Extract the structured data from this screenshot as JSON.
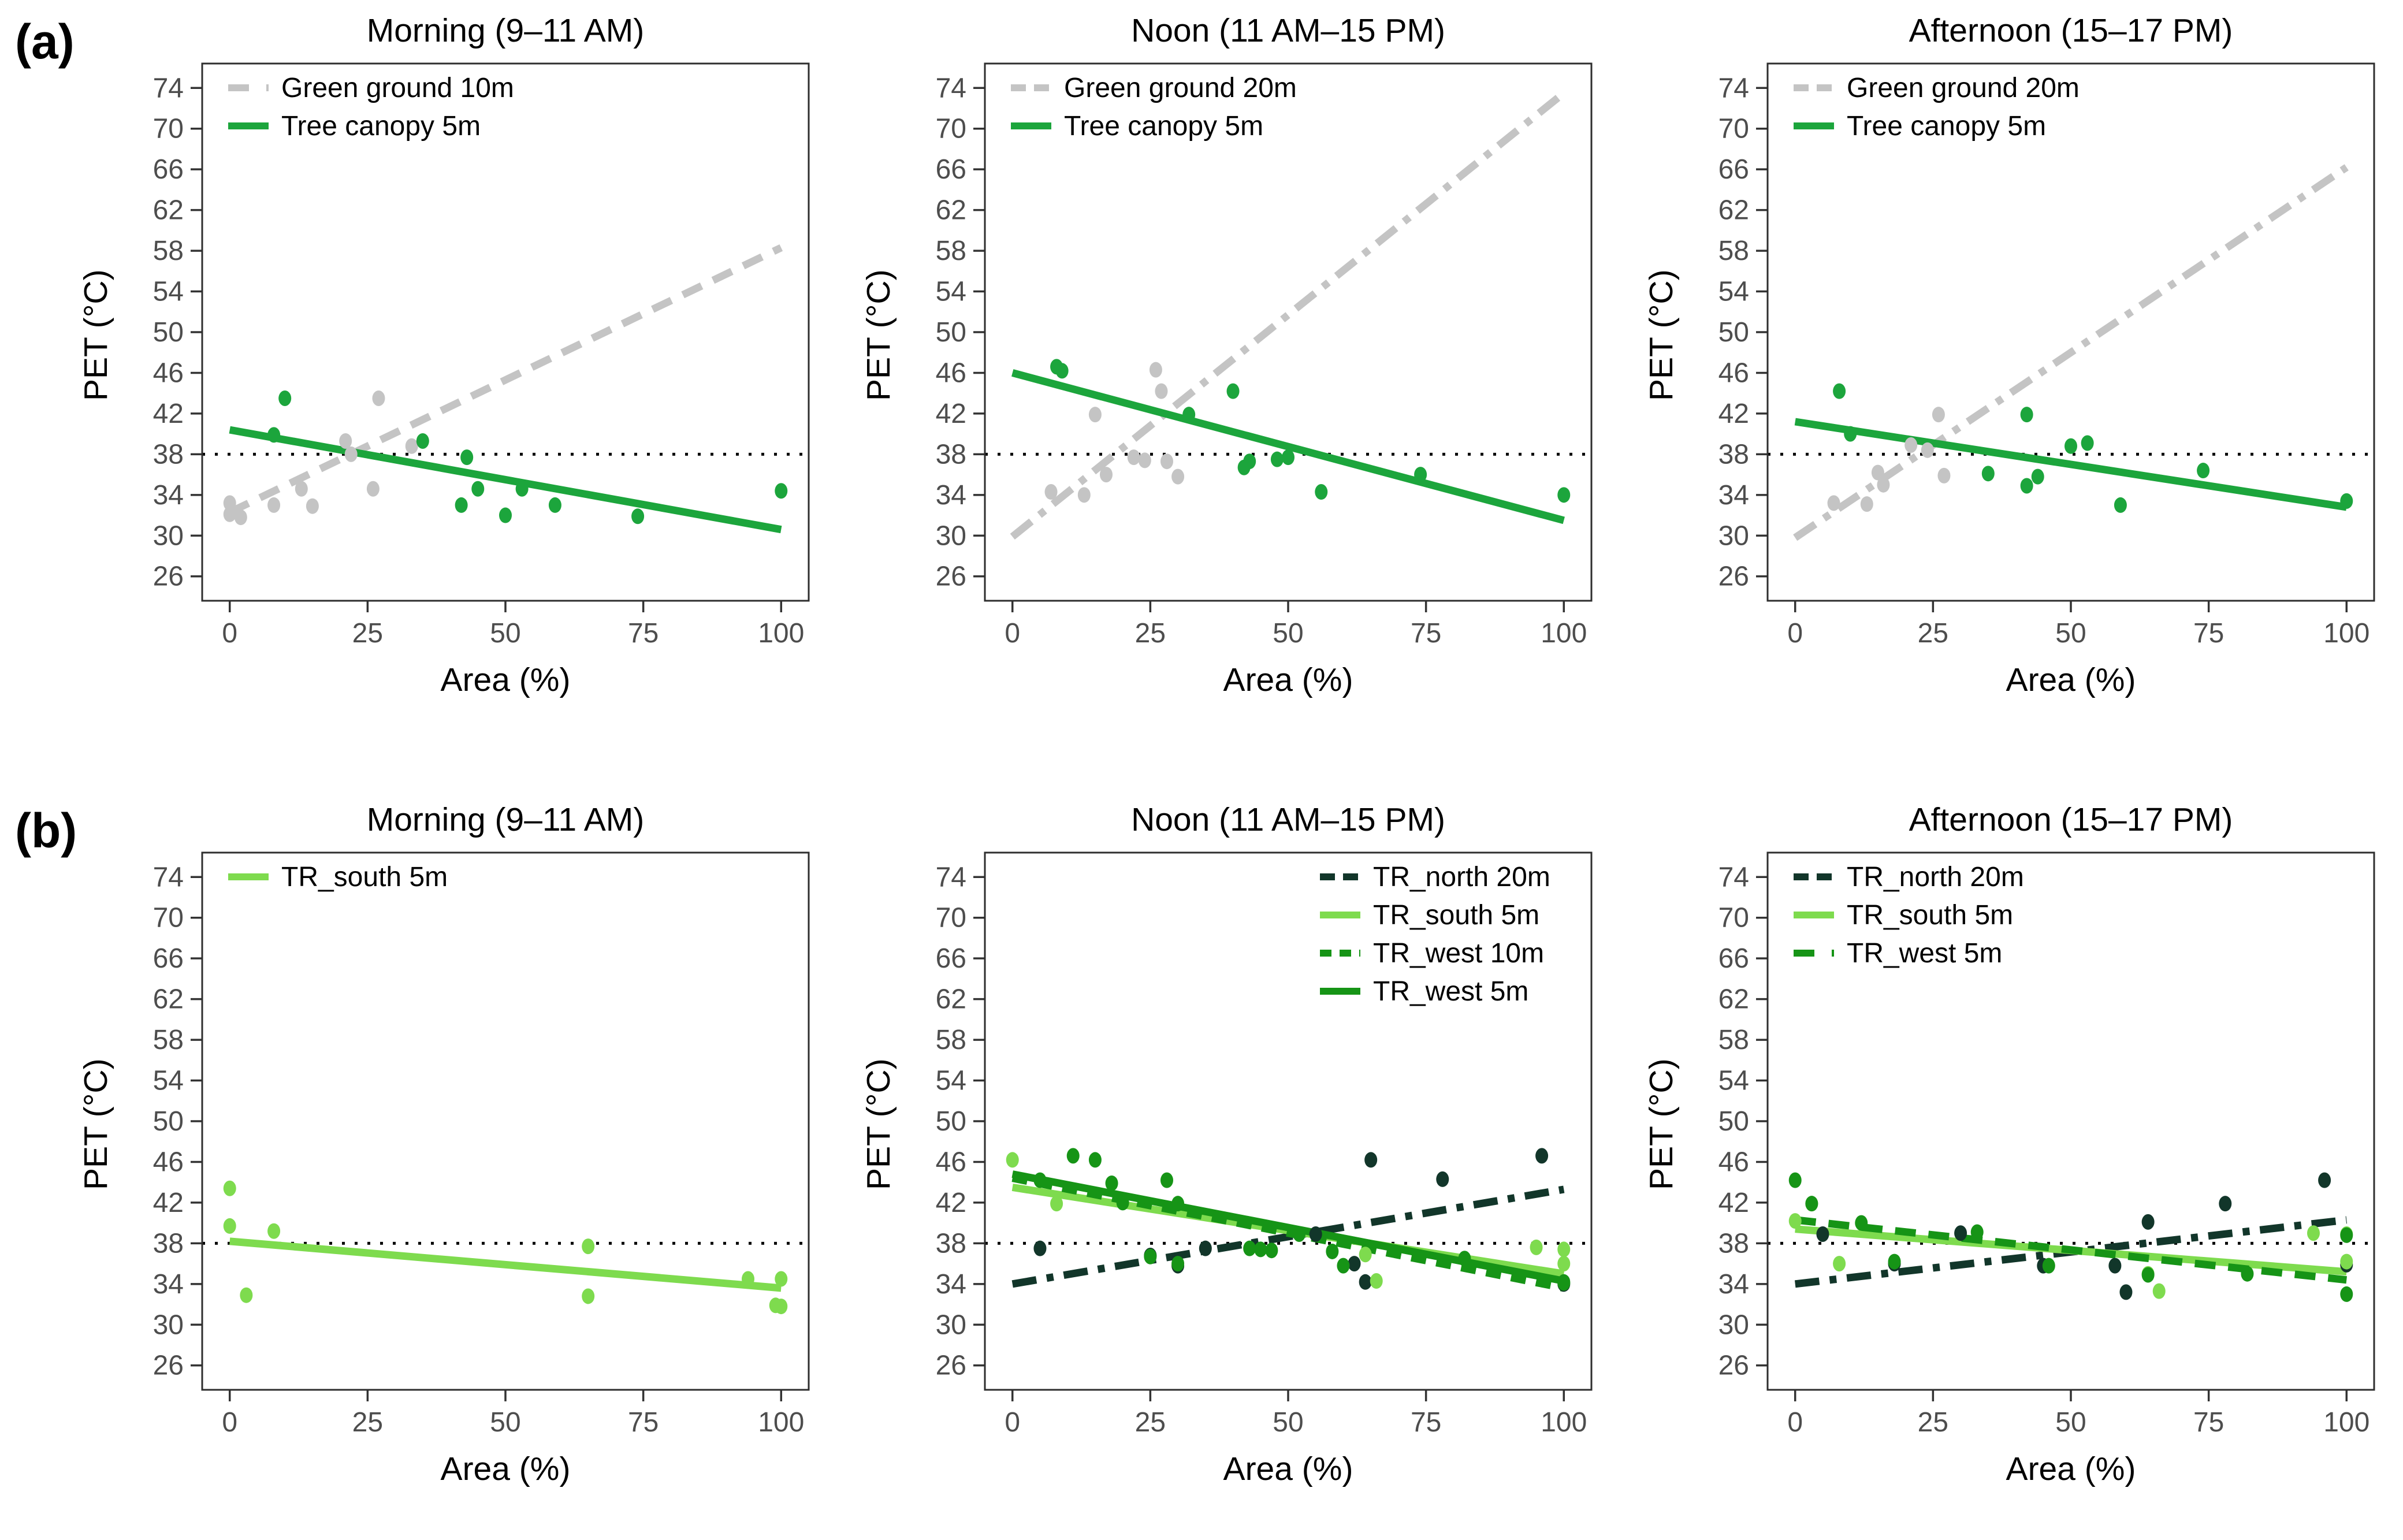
{
  "figure": {
    "panel_a_label": "(a)",
    "panel_b_label": "(b)",
    "x_axis_label": "Area (%)",
    "y_axis_label": "PET (°C)",
    "x_ticks": [
      0,
      25,
      50,
      75,
      100
    ],
    "y_ticks": [
      26,
      30,
      34,
      38,
      42,
      46,
      50,
      54,
      58,
      62,
      66,
      70,
      74
    ],
    "x_range": [
      -5,
      105
    ],
    "y_range": [
      23.6,
      76.4
    ],
    "reference_line_y": 38,
    "colors": {
      "green_ground_gray": "#C4C4C4",
      "tree_canopy_green": "#1CA53C",
      "tr_south_light_green": "#7EDB4E",
      "tr_west_medium_green": "#169416",
      "tr_north_dark_green": "#12362A",
      "reference_line": "#000000",
      "axis_text": "#4D4D4D",
      "panel_border": "#2E2E2E"
    }
  },
  "chart_data": [
    {
      "type": "scatter",
      "panel": "a",
      "title": "Morning (9–11 AM)",
      "xlabel": "Area (%)",
      "ylabel": "PET (°C)",
      "xlim": [
        -5,
        105
      ],
      "ylim": [
        23.6,
        76.4
      ],
      "legend_position": "top-left",
      "reference_line_y": 38,
      "series": [
        {
          "name": "Green ground 10m",
          "color": "#C4C4C4",
          "linetype": "longdash",
          "trend": {
            "x": [
              0,
              100
            ],
            "y": [
              32.3,
              58.3
            ]
          },
          "points": [
            [
              0,
              33.2
            ],
            [
              0,
              32.1
            ],
            [
              2,
              31.8
            ],
            [
              8,
              33.0
            ],
            [
              13,
              34.6
            ],
            [
              15,
              32.9
            ],
            [
              21,
              39.3
            ],
            [
              22,
              38.0
            ],
            [
              26,
              34.6
            ],
            [
              27,
              43.5
            ],
            [
              33,
              38.8
            ]
          ]
        },
        {
          "name": "Tree canopy 5m",
          "color": "#1CA53C",
          "linetype": "solid",
          "trend": {
            "x": [
              0,
              100
            ],
            "y": [
              40.4,
              30.6
            ]
          },
          "points": [
            [
              8,
              39.9
            ],
            [
              10,
              43.5
            ],
            [
              35,
              39.3
            ],
            [
              42,
              33.0
            ],
            [
              43,
              37.7
            ],
            [
              45,
              34.6
            ],
            [
              50,
              32.0
            ],
            [
              53,
              34.6
            ],
            [
              59,
              33.0
            ],
            [
              74,
              31.9
            ],
            [
              100,
              34.4
            ]
          ]
        }
      ]
    },
    {
      "type": "scatter",
      "panel": "a",
      "title": "Noon (11 AM–15 PM)",
      "xlabel": "Area (%)",
      "ylabel": "PET (°C)",
      "xlim": [
        -5,
        105
      ],
      "ylim": [
        23.6,
        76.4
      ],
      "legend_position": "top-left",
      "reference_line_y": 38,
      "series": [
        {
          "name": "Green ground 20m",
          "color": "#C4C4C4",
          "linetype": "dashdot",
          "trend": {
            "x": [
              0,
              100
            ],
            "y": [
              29.9,
              73.5
            ]
          },
          "points": [
            [
              7,
              34.3
            ],
            [
              13,
              34.0
            ],
            [
              15,
              41.9
            ],
            [
              17,
              36.0
            ],
            [
              22,
              37.7
            ],
            [
              24,
              37.4
            ],
            [
              26,
              46.3
            ],
            [
              27,
              44.2
            ],
            [
              28,
              37.3
            ],
            [
              30,
              35.8
            ]
          ]
        },
        {
          "name": "Tree canopy 5m",
          "color": "#1CA53C",
          "linetype": "solid",
          "trend": {
            "x": [
              0,
              100
            ],
            "y": [
              46.0,
              31.5
            ]
          },
          "points": [
            [
              8,
              46.6
            ],
            [
              9,
              46.2
            ],
            [
              32,
              41.9
            ],
            [
              40,
              44.2
            ],
            [
              42,
              36.7
            ],
            [
              43,
              37.3
            ],
            [
              48,
              37.5
            ],
            [
              50,
              37.7
            ],
            [
              56,
              34.3
            ],
            [
              74,
              36.0
            ],
            [
              100,
              34.0
            ]
          ]
        }
      ]
    },
    {
      "type": "scatter",
      "panel": "a",
      "title": "Afternoon (15–17 PM)",
      "xlabel": "Area (%)",
      "ylabel": "PET (°C)",
      "xlim": [
        -5,
        105
      ],
      "ylim": [
        23.6,
        76.4
      ],
      "legend_position": "top-left",
      "reference_line_y": 38,
      "series": [
        {
          "name": "Green ground 20m",
          "color": "#C4C4C4",
          "linetype": "dashdot",
          "trend": {
            "x": [
              0,
              100
            ],
            "y": [
              29.8,
              66.2
            ]
          },
          "points": [
            [
              7,
              33.2
            ],
            [
              13,
              33.1
            ],
            [
              15,
              36.2
            ],
            [
              16,
              35.0
            ],
            [
              21,
              38.9
            ],
            [
              24,
              38.4
            ],
            [
              26,
              41.9
            ],
            [
              27,
              35.9
            ]
          ]
        },
        {
          "name": "Tree canopy 5m",
          "color": "#1CA53C",
          "linetype": "solid",
          "trend": {
            "x": [
              0,
              100
            ],
            "y": [
              41.2,
              32.8
            ]
          },
          "points": [
            [
              8,
              44.2
            ],
            [
              10,
              40.0
            ],
            [
              35,
              36.1
            ],
            [
              42,
              41.9
            ],
            [
              42,
              34.9
            ],
            [
              44,
              35.8
            ],
            [
              50,
              38.8
            ],
            [
              53,
              39.1
            ],
            [
              59,
              33.0
            ],
            [
              74,
              36.4
            ],
            [
              100,
              33.4
            ]
          ]
        }
      ]
    },
    {
      "type": "scatter",
      "panel": "b",
      "title": "Morning (9–11 AM)",
      "xlabel": "Area (%)",
      "ylabel": "PET (°C)",
      "xlim": [
        -5,
        105
      ],
      "ylim": [
        23.6,
        76.4
      ],
      "legend_position": "top-left",
      "reference_line_y": 38,
      "series": [
        {
          "name": "TR_south 5m",
          "color": "#7EDB4E",
          "linetype": "solid",
          "trend": {
            "x": [
              0,
              100
            ],
            "y": [
              38.2,
              33.6
            ]
          },
          "points": [
            [
              0,
              43.4
            ],
            [
              0,
              39.7
            ],
            [
              3,
              32.9
            ],
            [
              8,
              39.2
            ],
            [
              65,
              37.7
            ],
            [
              65,
              32.8
            ],
            [
              94,
              34.5
            ],
            [
              99,
              31.9
            ],
            [
              100,
              34.5
            ],
            [
              100,
              31.8
            ]
          ]
        }
      ]
    },
    {
      "type": "scatter",
      "panel": "b",
      "title": "Noon (11 AM–15 PM)",
      "xlabel": "Area (%)",
      "ylabel": "PET (°C)",
      "xlim": [
        -5,
        105
      ],
      "ylim": [
        23.6,
        76.4
      ],
      "legend_position": "top-right",
      "reference_line_y": 38,
      "series": [
        {
          "name": "TR_north 20m",
          "color": "#12362A",
          "linetype": "dashdot",
          "trend": {
            "x": [
              0,
              100
            ],
            "y": [
              34.0,
              43.3
            ]
          },
          "points": [
            [
              5,
              37.5
            ],
            [
              25,
              36.8
            ],
            [
              30,
              35.8
            ],
            [
              35,
              37.5
            ],
            [
              55,
              38.9
            ],
            [
              62,
              36.0
            ],
            [
              64,
              34.2
            ],
            [
              65,
              46.2
            ],
            [
              78,
              44.3
            ],
            [
              96,
              46.6
            ],
            [
              100,
              34.0
            ]
          ]
        },
        {
          "name": "TR_south 5m",
          "color": "#7EDB4E",
          "linetype": "solid",
          "trend": {
            "x": [
              0,
              100
            ],
            "y": [
              43.5,
              35.0
            ]
          },
          "points": [
            [
              0,
              46.2
            ],
            [
              8,
              41.9
            ],
            [
              64,
              36.9
            ],
            [
              66,
              34.3
            ],
            [
              95,
              37.6
            ],
            [
              100,
              37.4
            ],
            [
              100,
              36.0
            ]
          ]
        },
        {
          "name": "TR_west 10m",
          "color": "#169416",
          "linetype": "dashed",
          "trend": {
            "x": [
              0,
              100
            ],
            "y": [
              44.4,
              33.6
            ]
          },
          "points": [
            [
              11,
              46.6
            ],
            [
              15,
              46.2
            ],
            [
              20,
              42.0
            ],
            [
              28,
              44.2
            ],
            [
              30,
              41.9
            ],
            [
              45,
              37.4
            ],
            [
              52,
              38.9
            ],
            [
              60,
              35.8
            ],
            [
              100,
              34.2
            ]
          ]
        },
        {
          "name": "TR_west 5m",
          "color": "#169416",
          "linetype": "solid",
          "trend": {
            "x": [
              0,
              100
            ],
            "y": [
              44.8,
              34.3
            ]
          },
          "points": [
            [
              5,
              44.2
            ],
            [
              18,
              43.9
            ],
            [
              25,
              36.7
            ],
            [
              30,
              36.0
            ],
            [
              43,
              37.5
            ],
            [
              47,
              37.3
            ],
            [
              58,
              37.2
            ],
            [
              82,
              36.5
            ],
            [
              100,
              34.1
            ]
          ]
        }
      ]
    },
    {
      "type": "scatter",
      "panel": "b",
      "title": "Afternoon (15–17 PM)",
      "xlabel": "Area (%)",
      "ylabel": "PET (°C)",
      "xlim": [
        -5,
        105
      ],
      "ylim": [
        23.6,
        76.4
      ],
      "legend_position": "top-left",
      "reference_line_y": 38,
      "series": [
        {
          "name": "TR_north 20m",
          "color": "#12362A",
          "linetype": "dashdot",
          "trend": {
            "x": [
              0,
              100
            ],
            "y": [
              34.0,
              40.3
            ]
          },
          "points": [
            [
              5,
              38.9
            ],
            [
              18,
              36.0
            ],
            [
              30,
              39.0
            ],
            [
              45,
              35.8
            ],
            [
              58,
              35.8
            ],
            [
              60,
              33.2
            ],
            [
              64,
              40.1
            ],
            [
              78,
              41.9
            ],
            [
              96,
              44.2
            ],
            [
              100,
              35.9
            ]
          ]
        },
        {
          "name": "TR_south 5m",
          "color": "#7EDB4E",
          "linetype": "solid",
          "trend": {
            "x": [
              0,
              100
            ],
            "y": [
              39.4,
              35.2
            ]
          },
          "points": [
            [
              0,
              40.2
            ],
            [
              3,
              41.9
            ],
            [
              8,
              36.0
            ],
            [
              64,
              35.0
            ],
            [
              66,
              33.3
            ],
            [
              94,
              39.0
            ],
            [
              100,
              38.9
            ],
            [
              100,
              36.2
            ]
          ]
        },
        {
          "name": "TR_west 5m",
          "color": "#169416",
          "linetype": "longdash",
          "trend": {
            "x": [
              0,
              100
            ],
            "y": [
              40.3,
              34.4
            ]
          },
          "points": [
            [
              0,
              44.2
            ],
            [
              3,
              41.9
            ],
            [
              12,
              40.0
            ],
            [
              18,
              36.2
            ],
            [
              33,
              39.1
            ],
            [
              46,
              35.8
            ],
            [
              64,
              34.9
            ],
            [
              82,
              35.0
            ],
            [
              100,
              38.8
            ],
            [
              100,
              33.0
            ]
          ]
        }
      ]
    }
  ]
}
